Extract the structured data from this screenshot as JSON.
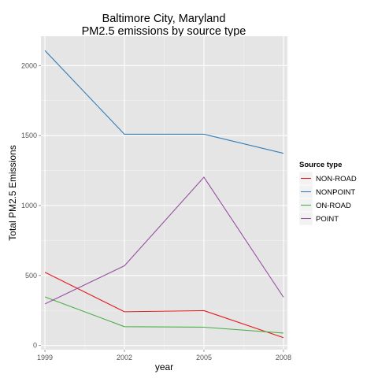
{
  "chart_data": {
    "type": "line",
    "title": [
      "Baltimore City, Maryland",
      "PM2.5 emissions by source type"
    ],
    "xlabel": "year",
    "ylabel": "Total PM2.5 Emissions",
    "x": [
      1999,
      2002,
      2005,
      2008
    ],
    "x_tick_labels": [
      "1999",
      "2002",
      "2005",
      "2008"
    ],
    "y_ticks": [
      0,
      500,
      1000,
      1500,
      2000
    ],
    "y_tick_labels": [
      "0",
      "500",
      "1000",
      "1500",
      "2000"
    ],
    "xlim": [
      1998.85,
      2008.15
    ],
    "ylim": [
      -30,
      2210
    ],
    "grid": true,
    "legend": {
      "title": "Source type",
      "placement": "right"
    },
    "series": [
      {
        "name": "NON-ROAD",
        "color": "#E41A1C",
        "values": [
          522.94,
          240.85,
          248.93,
          55.82
        ]
      },
      {
        "name": "NONPOINT",
        "color": "#377EB8",
        "values": [
          2107.63,
          1509.5,
          1509.5,
          1373.21
        ]
      },
      {
        "name": "ON-ROAD",
        "color": "#4DAF4A",
        "values": [
          346.82,
          134.31,
          130.43,
          88.28
        ]
      },
      {
        "name": "POINT",
        "color": "#984EA3",
        "values": [
          296.8,
          569.26,
          1202.49,
          344.98
        ]
      }
    ]
  }
}
